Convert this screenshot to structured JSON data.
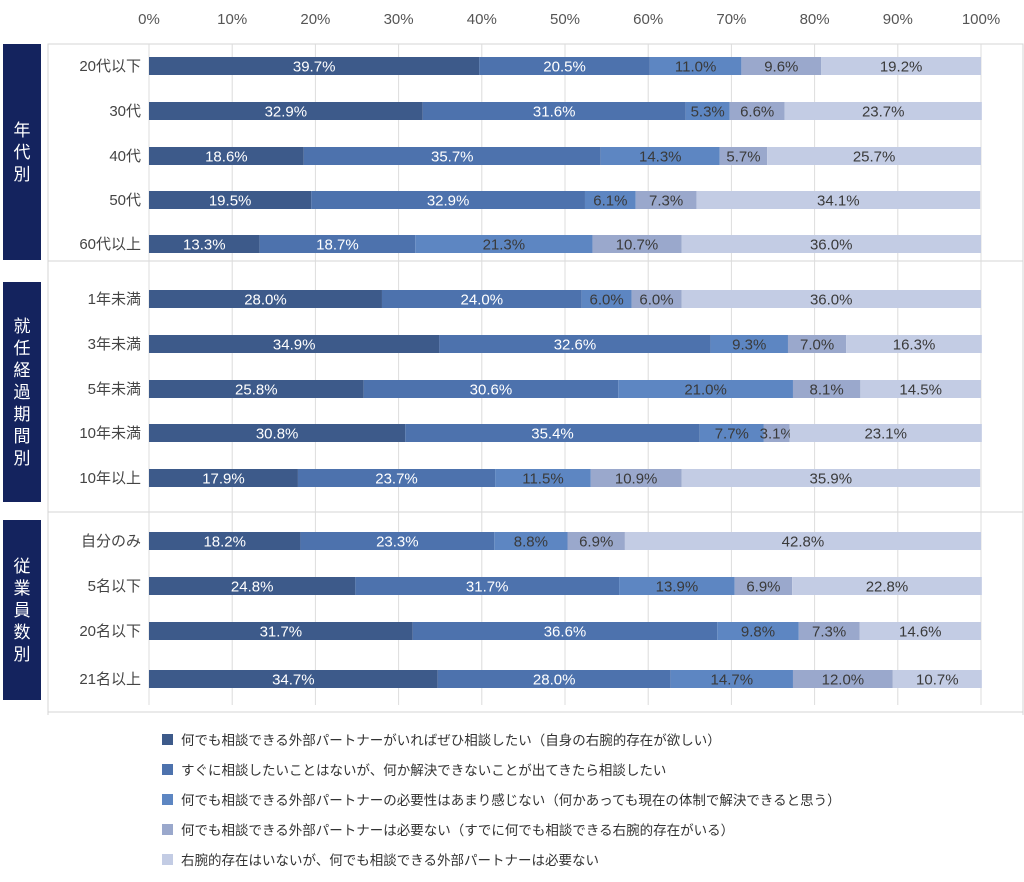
{
  "chart_data": {
    "type": "bar",
    "orientation": "horizontal",
    "stacked": true,
    "xlim": [
      0,
      100
    ],
    "x_ticks": [
      "0%",
      "10%",
      "20%",
      "30%",
      "40%",
      "50%",
      "60%",
      "70%",
      "80%",
      "90%",
      "100%"
    ],
    "grid": true,
    "legend_position": "bottom",
    "groups": [
      {
        "name": "年代別",
        "categories": [
          "20代以下",
          "30代",
          "40代",
          "50代",
          "60代以上"
        ]
      },
      {
        "name": "就任経過期間別",
        "categories": [
          "1年未満",
          "3年未満",
          "5年未満",
          "10年未満",
          "10年以上"
        ]
      },
      {
        "name": "従業員数別",
        "categories": [
          "自分のみ",
          "5名以下",
          "20名以下",
          "21名以上"
        ]
      }
    ],
    "series": [
      {
        "name": "何でも相談できる外部パートナーがいればぜひ相談したい（自身の右腕的存在が欲しい）",
        "color": "#3d5a8a",
        "values": [
          39.7,
          32.9,
          18.6,
          19.5,
          13.3,
          28.0,
          34.9,
          25.8,
          30.8,
          17.9,
          18.2,
          24.8,
          31.7,
          34.7
        ],
        "labels": [
          "39.7%",
          "32.9%",
          "18.6%",
          "19.5%",
          "13.3%",
          "28.0%",
          "34.9%",
          "25.8%",
          "30.8%",
          "17.9%",
          "18.2%",
          "24.8%",
          "31.7%",
          "34.7%"
        ]
      },
      {
        "name": "すぐに相談したいことはないが、何か解決できないことが出てきたら相談したい",
        "color": "#4d72ad",
        "values": [
          20.5,
          31.6,
          35.7,
          32.9,
          18.7,
          24.0,
          32.6,
          30.6,
          35.4,
          23.7,
          23.3,
          31.7,
          36.6,
          28.0
        ],
        "labels": [
          "20.5%",
          "31.6%",
          "35.7%",
          "32.9%",
          "18.7%",
          "24.0%",
          "32.6%",
          "30.6%",
          "35.4%",
          "23.7%",
          "23.3%",
          "31.7%",
          "36.6%",
          "28.0%"
        ]
      },
      {
        "name": "何でも相談できる外部パートナーの必要性はあまり感じない（何かあっても現在の体制で解決できると思う）",
        "color": "#5d86c2",
        "values": [
          11.0,
          5.3,
          14.3,
          6.1,
          21.3,
          6.0,
          9.3,
          21.0,
          7.7,
          11.5,
          8.8,
          13.9,
          9.8,
          14.7
        ],
        "labels": [
          "11.0%",
          "5.3%",
          "14.3%",
          "6.1%",
          "21.3%",
          "6.0%",
          "9.3%",
          "21.0%",
          "7.7%",
          "11.5%",
          "8.8%",
          "13.9%",
          "9.8%",
          "14.7%"
        ]
      },
      {
        "name": "何でも相談できる外部パートナーは必要ない（すでに何でも相談できる右腕的存在がいる）",
        "color": "#9aa8cc",
        "values": [
          9.6,
          6.6,
          5.7,
          7.3,
          10.7,
          6.0,
          7.0,
          8.1,
          3.1,
          10.9,
          6.9,
          6.9,
          7.3,
          12.0
        ],
        "labels": [
          "9.6%",
          "6.6%",
          "5.7%",
          "7.3%",
          "10.7%",
          "6.0%",
          "7.0%",
          "8.1%",
          "3.1%",
          "10.9%",
          "6.9%",
          "6.9%",
          "7.3%",
          "12.0%"
        ]
      },
      {
        "name": "右腕的存在はいないが、何でも相談できる外部パートナーは必要ない",
        "color": "#c3cce4",
        "values": [
          19.2,
          23.7,
          25.7,
          34.1,
          36.0,
          36.0,
          16.3,
          14.5,
          23.1,
          35.9,
          42.8,
          22.8,
          14.6,
          10.7
        ],
        "labels": [
          "19.2%",
          "23.7%",
          "25.7%",
          "34.1%",
          "36.0%",
          "36.0%",
          "16.3%",
          "14.5%",
          "23.1%",
          "35.9%",
          "42.8%",
          "22.8%",
          "14.6%",
          "10.7%"
        ]
      }
    ]
  }
}
